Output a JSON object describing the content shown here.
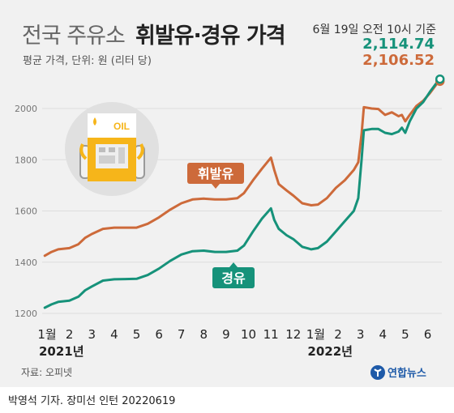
{
  "header": {
    "title_light": "전국 주유소",
    "title_bold": "휘발유·경유 가격",
    "subtitle": "평균 가격, 단위: 원 (리터 당)",
    "date": "6월 19일 오전 10시 기준",
    "diesel_latest": "2,114.74",
    "gasoline_latest": "2,106.52"
  },
  "source": "자료: 오피넷",
  "credit": "박영석 기자. 장미선 인턴  20220619",
  "logo": {
    "text": "연합뉴스"
  },
  "icon": {
    "label": "OIL"
  },
  "colors": {
    "gasoline": "#cd6a3a",
    "diesel": "#16927a",
    "grid": "#dddddd",
    "background": "#f1f1f1"
  },
  "chart_data": {
    "type": "line",
    "title": "전국 주유소 휘발유·경유 가격",
    "ylim": [
      1200,
      2150
    ],
    "y_ticks": [
      1200,
      1400,
      1600,
      1800,
      2000
    ],
    "x_ticks": [
      {
        "label": "1",
        "x": 1
      },
      {
        "label": "2",
        "x": 2
      },
      {
        "label": "3",
        "x": 3
      },
      {
        "label": "4",
        "x": 4
      },
      {
        "label": "5",
        "x": 5
      },
      {
        "label": "6",
        "x": 6
      },
      {
        "label": "7",
        "x": 7
      },
      {
        "label": "8",
        "x": 8
      },
      {
        "label": "9",
        "x": 9
      },
      {
        "label": "10",
        "x": 10
      },
      {
        "label": "11",
        "x": 11
      },
      {
        "label": "12",
        "x": 12
      },
      {
        "label": "1",
        "x": 13
      },
      {
        "label": "2",
        "x": 14
      },
      {
        "label": "3",
        "x": 15
      },
      {
        "label": "4",
        "x": 16
      },
      {
        "label": "5",
        "x": 17
      },
      {
        "label": "6",
        "x": 18
      }
    ],
    "month_suffix": "월",
    "year_labels": [
      {
        "text": "2021년",
        "x": 1
      },
      {
        "text": "2022년",
        "x": 13
      }
    ],
    "xlim": [
      1,
      18.6
    ],
    "grid": true,
    "series": [
      {
        "name": "휘발유",
        "color": "#cd6a3a",
        "points": [
          [
            0.9,
            1425
          ],
          [
            1.2,
            1440
          ],
          [
            1.5,
            1450
          ],
          [
            2.0,
            1455
          ],
          [
            2.4,
            1470
          ],
          [
            2.7,
            1495
          ],
          [
            3.0,
            1510
          ],
          [
            3.5,
            1530
          ],
          [
            4.0,
            1535
          ],
          [
            4.5,
            1535
          ],
          [
            5.0,
            1535
          ],
          [
            5.5,
            1550
          ],
          [
            6.0,
            1575
          ],
          [
            6.5,
            1605
          ],
          [
            7.0,
            1630
          ],
          [
            7.5,
            1645
          ],
          [
            8.0,
            1648
          ],
          [
            8.5,
            1645
          ],
          [
            9.0,
            1645
          ],
          [
            9.5,
            1650
          ],
          [
            9.8,
            1670
          ],
          [
            10.2,
            1720
          ],
          [
            10.6,
            1765
          ],
          [
            11.0,
            1808
          ],
          [
            11.15,
            1760
          ],
          [
            11.35,
            1705
          ],
          [
            11.7,
            1680
          ],
          [
            12.0,
            1660
          ],
          [
            12.4,
            1630
          ],
          [
            12.8,
            1622
          ],
          [
            13.1,
            1625
          ],
          [
            13.5,
            1650
          ],
          [
            13.9,
            1690
          ],
          [
            14.3,
            1720
          ],
          [
            14.7,
            1760
          ],
          [
            14.9,
            1790
          ],
          [
            15.05,
            1900
          ],
          [
            15.15,
            2005
          ],
          [
            15.5,
            2000
          ],
          [
            15.8,
            1998
          ],
          [
            16.1,
            1975
          ],
          [
            16.4,
            1985
          ],
          [
            16.7,
            1970
          ],
          [
            16.85,
            1975
          ],
          [
            17.0,
            1950
          ],
          [
            17.2,
            1975
          ],
          [
            17.5,
            2010
          ],
          [
            17.8,
            2030
          ],
          [
            18.1,
            2060
          ],
          [
            18.4,
            2095
          ],
          [
            18.55,
            2106.52
          ]
        ]
      },
      {
        "name": "경유",
        "color": "#16927a",
        "points": [
          [
            0.9,
            1222
          ],
          [
            1.2,
            1235
          ],
          [
            1.5,
            1245
          ],
          [
            2.0,
            1250
          ],
          [
            2.4,
            1265
          ],
          [
            2.7,
            1290
          ],
          [
            3.0,
            1305
          ],
          [
            3.5,
            1328
          ],
          [
            4.0,
            1333
          ],
          [
            4.5,
            1334
          ],
          [
            5.0,
            1335
          ],
          [
            5.5,
            1350
          ],
          [
            6.0,
            1375
          ],
          [
            6.5,
            1405
          ],
          [
            7.0,
            1430
          ],
          [
            7.5,
            1443
          ],
          [
            8.0,
            1445
          ],
          [
            8.5,
            1440
          ],
          [
            9.0,
            1440
          ],
          [
            9.5,
            1445
          ],
          [
            9.8,
            1465
          ],
          [
            10.2,
            1520
          ],
          [
            10.6,
            1570
          ],
          [
            11.0,
            1610
          ],
          [
            11.15,
            1565
          ],
          [
            11.35,
            1530
          ],
          [
            11.7,
            1505
          ],
          [
            12.0,
            1490
          ],
          [
            12.4,
            1460
          ],
          [
            12.8,
            1450
          ],
          [
            13.1,
            1455
          ],
          [
            13.5,
            1480
          ],
          [
            13.9,
            1520
          ],
          [
            14.3,
            1560
          ],
          [
            14.7,
            1600
          ],
          [
            14.9,
            1650
          ],
          [
            15.05,
            1800
          ],
          [
            15.15,
            1915
          ],
          [
            15.5,
            1920
          ],
          [
            15.8,
            1920
          ],
          [
            16.1,
            1905
          ],
          [
            16.4,
            1900
          ],
          [
            16.7,
            1910
          ],
          [
            16.85,
            1925
          ],
          [
            17.0,
            1905
          ],
          [
            17.2,
            1950
          ],
          [
            17.5,
            2000
          ],
          [
            17.8,
            2025
          ],
          [
            18.1,
            2065
          ],
          [
            18.4,
            2100
          ],
          [
            18.55,
            2114.74
          ]
        ]
      }
    ]
  }
}
